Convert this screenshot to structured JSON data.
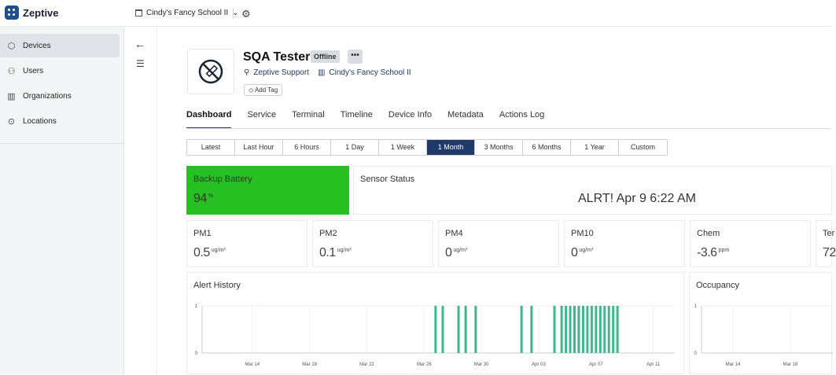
{
  "app": {
    "brand": "Zeptive",
    "school_selector": "Cindy's Fancy School II"
  },
  "sidebar": {
    "items": [
      {
        "label": "Devices",
        "icon": "cube-icon"
      },
      {
        "label": "Users",
        "icon": "users-icon"
      },
      {
        "label": "Organizations",
        "icon": "building-icon"
      },
      {
        "label": "Locations",
        "icon": "location-pin-icon"
      }
    ]
  },
  "device": {
    "name": "SQA Tester",
    "status": "Offline",
    "more_label": "•••",
    "owner": "Zeptive Support",
    "school": "Cindy's Fancy School II",
    "add_tag": "Add Tag"
  },
  "tabs": [
    "Dashboard",
    "Service",
    "Terminal",
    "Timeline",
    "Device Info",
    "Metadata",
    "Actions Log"
  ],
  "time_ranges": {
    "options": [
      "Latest",
      "Last Hour",
      "6 Hours",
      "1 Day",
      "1 Week",
      "1 Month",
      "3 Months",
      "6 Months",
      "1 Year",
      "Custom"
    ],
    "selected": "1 Month"
  },
  "cards": {
    "battery": {
      "label": "Backup Battery",
      "value": "94",
      "unit": "%",
      "color": "#27c023"
    },
    "sensor": {
      "label": "Sensor Status",
      "value": "ALRT! Apr 9 6:22 AM"
    },
    "metrics": [
      {
        "label": "PM1",
        "value": "0.5",
        "unit": "ug/m³"
      },
      {
        "label": "PM2",
        "value": "0.1",
        "unit": "ug/m³"
      },
      {
        "label": "PM4",
        "value": "0",
        "unit": "ug/m³"
      },
      {
        "label": "PM10",
        "value": "0",
        "unit": "ug/m³"
      },
      {
        "label": "Chem",
        "value": "-3.6",
        "unit": "ppm"
      },
      {
        "label": "Ter",
        "value": "72",
        "unit": ""
      }
    ]
  },
  "chart_data": [
    {
      "type": "bar",
      "title": "Alert History",
      "x_ticks": [
        "Mar 14",
        "Mar 18",
        "Mar 22",
        "Mar 26",
        "Mar 30",
        "Apr 03",
        "Apr 07",
        "Apr 11"
      ],
      "y_ticks": [
        "0",
        "1"
      ],
      "ylim": [
        0,
        1
      ],
      "alert_days": [
        26.8,
        27.3,
        28.4,
        28.9,
        29.6,
        32.8,
        33.5,
        35.1,
        35.6,
        35.9,
        36.2,
        36.5,
        36.8,
        37.1,
        37.4,
        37.7,
        38.0,
        38.3,
        38.6,
        38.9,
        39.2,
        39.5
      ],
      "x_range_days": [
        10.5,
        43.5
      ],
      "color": "#3cb88a"
    },
    {
      "type": "bar",
      "title": "Occupancy",
      "x_ticks": [
        "Mar 14",
        "Mar 18"
      ],
      "y_ticks": [
        "0",
        "1"
      ],
      "ylim": [
        0,
        1
      ]
    }
  ]
}
